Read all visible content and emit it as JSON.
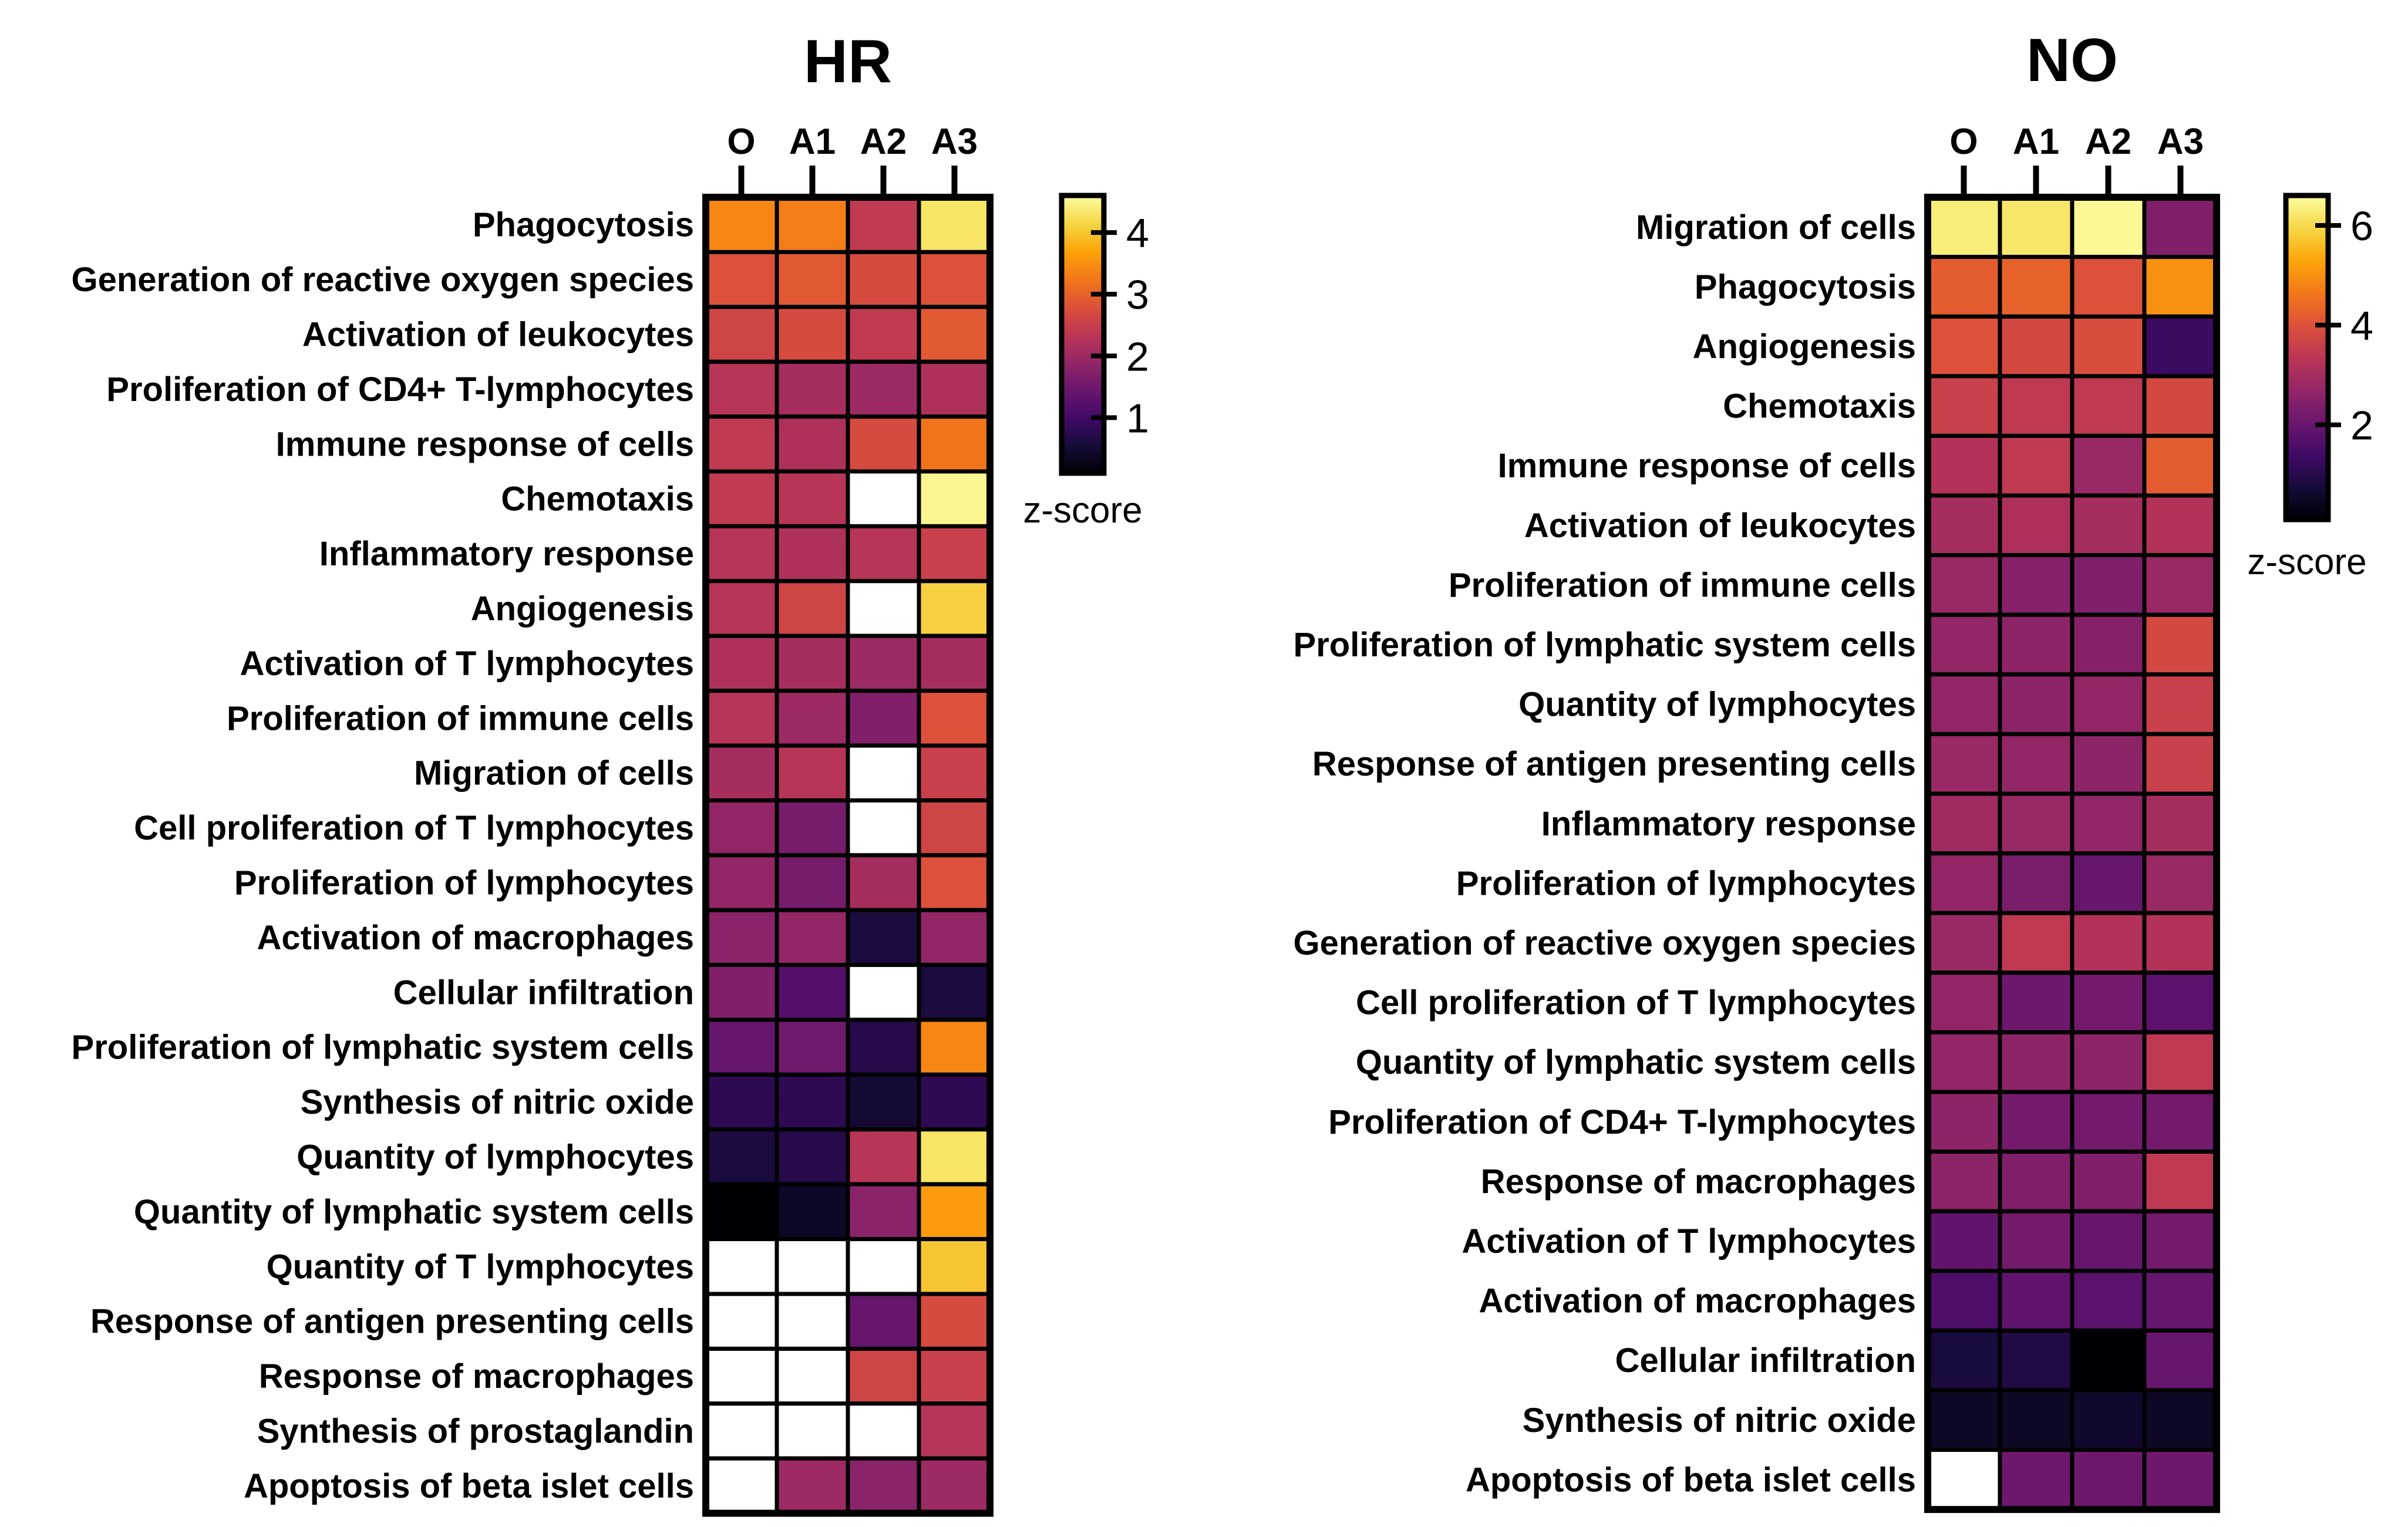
{
  "chart_data": [
    {
      "type": "heatmap",
      "title": "HR",
      "columns": [
        "O",
        "A1",
        "A2",
        "A3"
      ],
      "rows": [
        "Phagocytosis",
        "Generation of reactive oxygen species",
        "Activation of leukocytes",
        "Proliferation of CD4+ T-lymphocytes",
        "Immune response of cells",
        "Chemotaxis",
        "Inflammatory response",
        "Angiogenesis",
        "Activation of T lymphocytes",
        "Proliferation of immune cells",
        "Migration of cells",
        "Cell proliferation of T lymphocytes",
        "Proliferation of lymphocytes",
        "Activation of macrophages",
        "Cellular infiltration",
        "Proliferation of lymphatic system cells",
        "Synthesis of nitric oxide",
        "Quantity of lymphocytes",
        "Quantity of lymphatic system cells",
        "Quantity of T lymphocytes",
        "Response of antigen presenting cells",
        "Response of macrophages",
        "Synthesis of prostaglandin",
        "Apoptosis of beta islet cells"
      ],
      "values": [
        [
          3.4,
          3.3,
          2.4,
          4.3
        ],
        [
          2.8,
          2.9,
          2.7,
          2.8
        ],
        [
          2.6,
          2.7,
          2.4,
          2.9
        ],
        [
          2.3,
          2.1,
          2.0,
          2.2
        ],
        [
          2.4,
          2.2,
          2.7,
          3.2
        ],
        [
          2.4,
          2.3,
          null,
          4.5
        ],
        [
          2.3,
          2.2,
          2.3,
          2.5
        ],
        [
          2.3,
          2.6,
          null,
          4.1
        ],
        [
          2.2,
          2.1,
          2.0,
          2.1
        ],
        [
          2.3,
          2.0,
          1.7,
          2.8
        ],
        [
          2.1,
          2.3,
          null,
          2.5
        ],
        [
          1.9,
          1.6,
          null,
          2.6
        ],
        [
          1.9,
          1.6,
          2.1,
          2.8
        ],
        [
          1.8,
          1.9,
          0.6,
          1.9
        ],
        [
          1.7,
          1.2,
          null,
          0.6
        ],
        [
          1.4,
          1.5,
          0.7,
          3.4
        ],
        [
          0.8,
          0.8,
          0.5,
          0.8
        ],
        [
          0.6,
          0.7,
          2.3,
          4.3
        ],
        [
          0.1,
          0.4,
          1.8,
          3.6
        ],
        [
          null,
          null,
          null,
          4.0
        ],
        [
          null,
          null,
          1.4,
          2.7
        ],
        [
          null,
          null,
          2.6,
          2.5
        ],
        [
          null,
          null,
          null,
          2.3
        ],
        [
          null,
          2.0,
          1.8,
          2.0
        ]
      ],
      "colorbar": {
        "min": 0.1,
        "max": 4.6,
        "ticks": [
          "1",
          "2",
          "3",
          "4"
        ],
        "label": "z-score"
      },
      "missing_color": "#ffffff"
    },
    {
      "type": "heatmap",
      "title": "NO",
      "columns": [
        "O",
        "A1",
        "A2",
        "A3"
      ],
      "rows": [
        "Migration of cells",
        "Phagocytosis",
        "Angiogenesis",
        "Chemotaxis",
        "Immune response of cells",
        "Activation of leukocytes",
        "Proliferation of immune cells",
        "Proliferation of lymphatic system cells",
        "Quantity of lymphocytes",
        "Response of antigen presenting cells",
        "Inflammatory response",
        "Proliferation of lymphocytes",
        "Generation of reactive oxygen species",
        "Cell proliferation of T lymphocytes",
        "Quantity of lymphatic system cells",
        "Proliferation of CD4+ T-lymphocytes",
        "Response of macrophages",
        "Activation of T lymphocytes",
        "Activation of macrophages",
        "Cellular infiltration",
        "Synthesis of nitric oxide",
        "Apoptosis of beta islet cells"
      ],
      "values": [
        [
          6.3,
          6.2,
          6.5,
          2.4
        ],
        [
          4.2,
          4.3,
          4.0,
          5.0
        ],
        [
          4.0,
          3.8,
          3.9,
          1.3
        ],
        [
          3.6,
          3.4,
          3.4,
          3.8
        ],
        [
          3.2,
          3.4,
          2.8,
          4.2
        ],
        [
          3.0,
          3.1,
          3.0,
          3.2
        ],
        [
          2.8,
          2.5,
          2.4,
          2.8
        ],
        [
          2.7,
          2.6,
          2.5,
          3.8
        ],
        [
          2.7,
          2.6,
          2.7,
          3.6
        ],
        [
          2.8,
          2.7,
          2.6,
          3.6
        ],
        [
          2.9,
          2.8,
          2.7,
          3.0
        ],
        [
          2.7,
          2.3,
          2.0,
          2.8
        ],
        [
          2.8,
          3.4,
          3.2,
          3.2
        ],
        [
          2.7,
          2.1,
          2.2,
          1.8
        ],
        [
          2.7,
          2.6,
          2.6,
          3.4
        ],
        [
          2.6,
          2.2,
          2.2,
          2.2
        ],
        [
          2.6,
          2.4,
          2.4,
          3.4
        ],
        [
          1.9,
          2.2,
          2.0,
          2.2
        ],
        [
          1.6,
          1.9,
          1.8,
          2.0
        ],
        [
          0.8,
          0.9,
          0.1,
          2.0
        ],
        [
          0.5,
          0.5,
          0.6,
          0.5
        ],
        [
          null,
          2.1,
          2.1,
          2.1
        ]
      ],
      "colorbar": {
        "min": 0.1,
        "max": 6.6,
        "ticks": [
          "2",
          "4",
          "6"
        ],
        "label": "z-score"
      },
      "missing_color": "#ffffff"
    }
  ]
}
